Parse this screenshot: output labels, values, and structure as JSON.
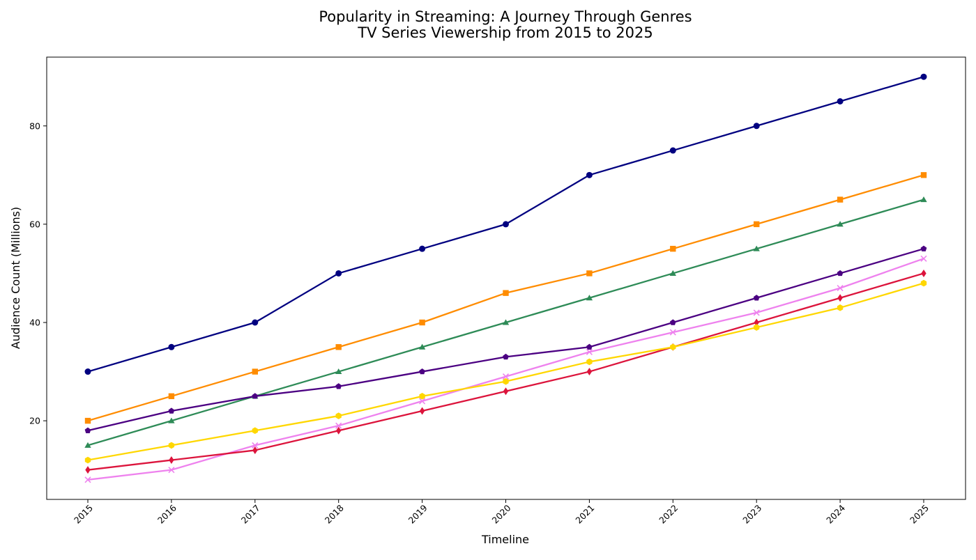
{
  "chart_data": {
    "type": "line",
    "title": "Popularity in Streaming: A Journey Through Genres",
    "subtitle": "TV Series Viewership from 2015 to 2025",
    "xlabel": "Timeline",
    "ylabel": "Audience Count (Millions)",
    "x": [
      "2015",
      "2016",
      "2017",
      "2018",
      "2019",
      "2020",
      "2021",
      "2022",
      "2023",
      "2024",
      "2025"
    ],
    "ylim": [
      4,
      94
    ],
    "yticks": [
      20,
      40,
      60,
      80
    ],
    "grid": false,
    "legend": "none",
    "series": [
      {
        "color": "#000080",
        "marker": "circle",
        "values": [
          30,
          35,
          40,
          50,
          55,
          60,
          70,
          75,
          80,
          85,
          90
        ]
      },
      {
        "color": "#FF8C00",
        "marker": "square",
        "values": [
          20,
          25,
          30,
          35,
          40,
          46,
          50,
          55,
          60,
          65,
          70
        ]
      },
      {
        "color": "#2E8B57",
        "marker": "triangle",
        "values": [
          15,
          20,
          25,
          30,
          35,
          40,
          45,
          50,
          55,
          60,
          65
        ]
      },
      {
        "color": "#4B0082",
        "marker": "pentagon",
        "values": [
          18,
          22,
          25,
          27,
          30,
          33,
          35,
          40,
          45,
          50,
          55
        ]
      },
      {
        "color": "#EE82EE",
        "marker": "x",
        "values": [
          8,
          10,
          15,
          19,
          24,
          29,
          34,
          38,
          42,
          47,
          53
        ]
      },
      {
        "color": "#DC143C",
        "marker": "diamond",
        "values": [
          10,
          12,
          14,
          18,
          22,
          26,
          30,
          35,
          40,
          45,
          50
        ]
      },
      {
        "color": "#FFD700",
        "marker": "hexagon",
        "values": [
          12,
          15,
          18,
          21,
          25,
          28,
          32,
          35,
          39,
          43,
          48
        ]
      }
    ]
  }
}
